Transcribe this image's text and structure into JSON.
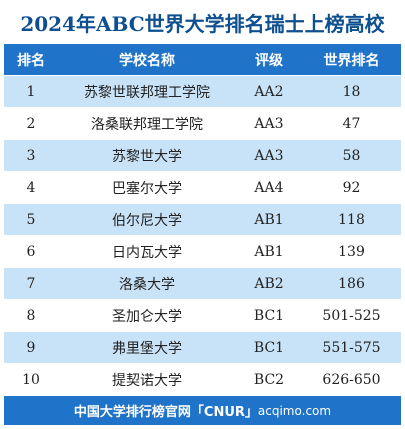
{
  "title": "2024年ABC世界大学排名瑞士上榜高校",
  "columns": {
    "rank": "排名",
    "school": "学校名称",
    "level": "评级",
    "world": "世界排名"
  },
  "rows": [
    {
      "rank": "1",
      "school": "苏黎世联邦理工学院",
      "level": "AA2",
      "world": "18"
    },
    {
      "rank": "2",
      "school": "洛桑联邦理工学院",
      "level": "AA3",
      "world": "47"
    },
    {
      "rank": "3",
      "school": "苏黎世大学",
      "level": "AA3",
      "world": "58"
    },
    {
      "rank": "4",
      "school": "巴塞尔大学",
      "level": "AA4",
      "world": "92"
    },
    {
      "rank": "5",
      "school": "伯尔尼大学",
      "level": "AB1",
      "world": "118"
    },
    {
      "rank": "6",
      "school": "日内瓦大学",
      "level": "AB1",
      "world": "139"
    },
    {
      "rank": "7",
      "school": "洛桑大学",
      "level": "AB2",
      "world": "186"
    },
    {
      "rank": "8",
      "school": "圣加仑大学",
      "level": "BC1",
      "world": "501-525"
    },
    {
      "rank": "9",
      "school": "弗里堡大学",
      "level": "BC1",
      "world": "551-575"
    },
    {
      "rank": "10",
      "school": "提契诺大学",
      "level": "BC2",
      "world": "626-650"
    }
  ],
  "footer": {
    "brand": "中国大学排行榜官网「CNUR」",
    "site": "acqimo.com"
  },
  "colors": {
    "title": "#0d4f8f",
    "header_bg": "#1f73c8",
    "alt_row_bg": "#c8e3f7",
    "footer_bg": "#1f73c8"
  }
}
